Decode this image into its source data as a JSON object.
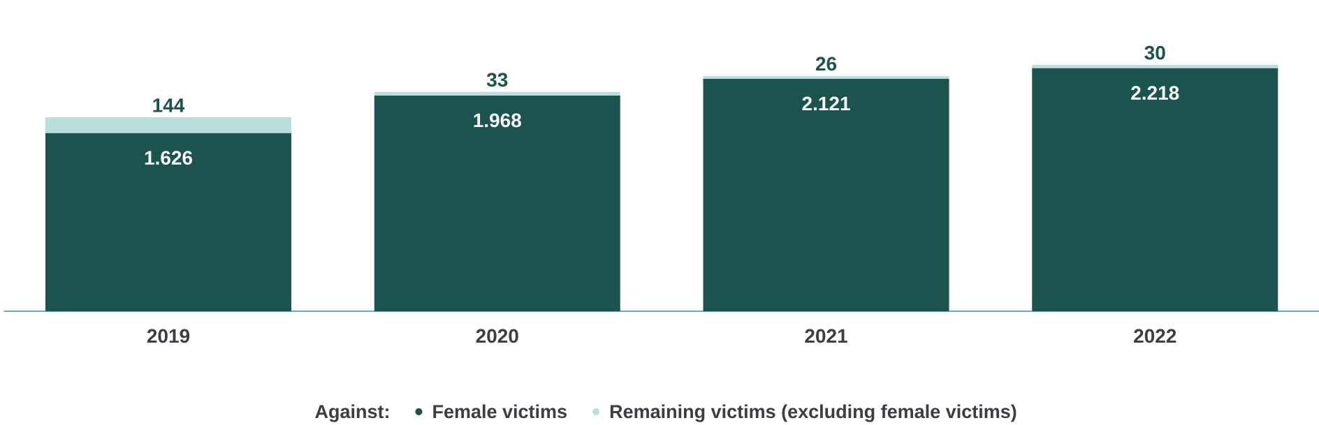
{
  "chart_data": {
    "type": "bar",
    "stacked": true,
    "categories": [
      "2019",
      "2020",
      "2021",
      "2022"
    ],
    "legend_title": "Against:",
    "legend": "bottom",
    "series": [
      {
        "name": "Female victims",
        "color": "#1b544f",
        "values": [
          1626,
          1968,
          2121,
          2218
        ],
        "value_labels": [
          "1.626",
          "1.968",
          "2.121",
          "2.218"
        ]
      },
      {
        "name": "Remaining victims (excluding female victims)",
        "color": "#b9dfdc",
        "values": [
          144,
          33,
          26,
          30
        ],
        "value_labels": [
          "144",
          "33",
          "26",
          "30"
        ]
      }
    ]
  }
}
